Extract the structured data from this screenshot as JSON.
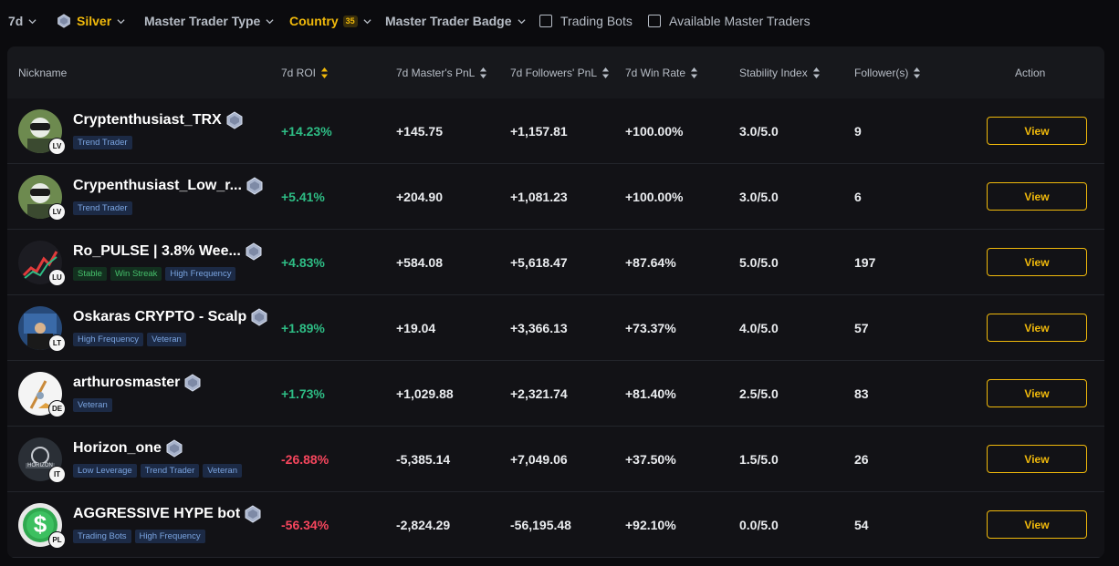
{
  "filters": {
    "period": "7d",
    "tier": "Silver",
    "master_type": "Master Trader Type",
    "country": "Country",
    "country_count": "35",
    "badge": "Master Trader Badge",
    "trading_bots": "Trading Bots",
    "available": "Available Master Traders"
  },
  "colors": {
    "accent": "#f0b90b",
    "positive": "#2ebd85",
    "negative": "#f6465d"
  },
  "columns": {
    "nickname": "Nickname",
    "roi": "7d ROI",
    "master_pnl": "7d Master's PnL",
    "followers_pnl": "7d Followers' PnL",
    "win_rate": "7d Win Rate",
    "stability": "Stability Index",
    "followers": "Follower(s)",
    "action": "Action"
  },
  "rows": [
    {
      "name": "Cryptenthusiast_TRX",
      "level": "LV",
      "tags": [
        "Trend Trader"
      ],
      "roi": "+14.23%",
      "master_pnl": "+145.75",
      "followers_pnl": "+1,157.81",
      "win_rate": "+100.00%",
      "stability": "3.0/5.0",
      "followers": "9",
      "action": "View"
    },
    {
      "name": "Crypenthusiast_Low_r...",
      "level": "LV",
      "tags": [
        "Trend Trader"
      ],
      "roi": "+5.41%",
      "master_pnl": "+204.90",
      "followers_pnl": "+1,081.23",
      "win_rate": "+100.00%",
      "stability": "3.0/5.0",
      "followers": "6",
      "action": "View"
    },
    {
      "name": "Ro_PULSE | 3.8% Wee...",
      "level": "LU",
      "tags": [
        "Stable",
        "Win Streak",
        "High Frequency"
      ],
      "roi": "+4.83%",
      "master_pnl": "+584.08",
      "followers_pnl": "+5,618.47",
      "win_rate": "+87.64%",
      "stability": "5.0/5.0",
      "followers": "197",
      "action": "View"
    },
    {
      "name": "Oskaras CRYPTO - Scalp",
      "level": "LT",
      "tags": [
        "High Frequency",
        "Veteran"
      ],
      "roi": "+1.89%",
      "master_pnl": "+19.04",
      "followers_pnl": "+3,366.13",
      "win_rate": "+73.37%",
      "stability": "4.0/5.0",
      "followers": "57",
      "action": "View"
    },
    {
      "name": "arthurosmaster",
      "level": "DE",
      "tags": [
        "Veteran"
      ],
      "roi": "+1.73%",
      "master_pnl": "+1,029.88",
      "followers_pnl": "+2,321.74",
      "win_rate": "+81.40%",
      "stability": "2.5/5.0",
      "followers": "83",
      "action": "View"
    },
    {
      "name": "Horizon_one",
      "level": "IT",
      "tags": [
        "Low Leverage",
        "Trend Trader",
        "Veteran"
      ],
      "roi": "-26.88%",
      "master_pnl": "-5,385.14",
      "followers_pnl": "+7,049.06",
      "win_rate": "+37.50%",
      "stability": "1.5/5.0",
      "followers": "26",
      "action": "View"
    },
    {
      "name": "AGGRESSIVE HYPE bot",
      "level": "PL",
      "tags": [
        "Trading Bots",
        "High Frequency"
      ],
      "roi": "-56.34%",
      "master_pnl": "-2,824.29",
      "followers_pnl": "-56,195.48",
      "win_rate": "+92.10%",
      "stability": "0.0/5.0",
      "followers": "54",
      "action": "View"
    }
  ]
}
